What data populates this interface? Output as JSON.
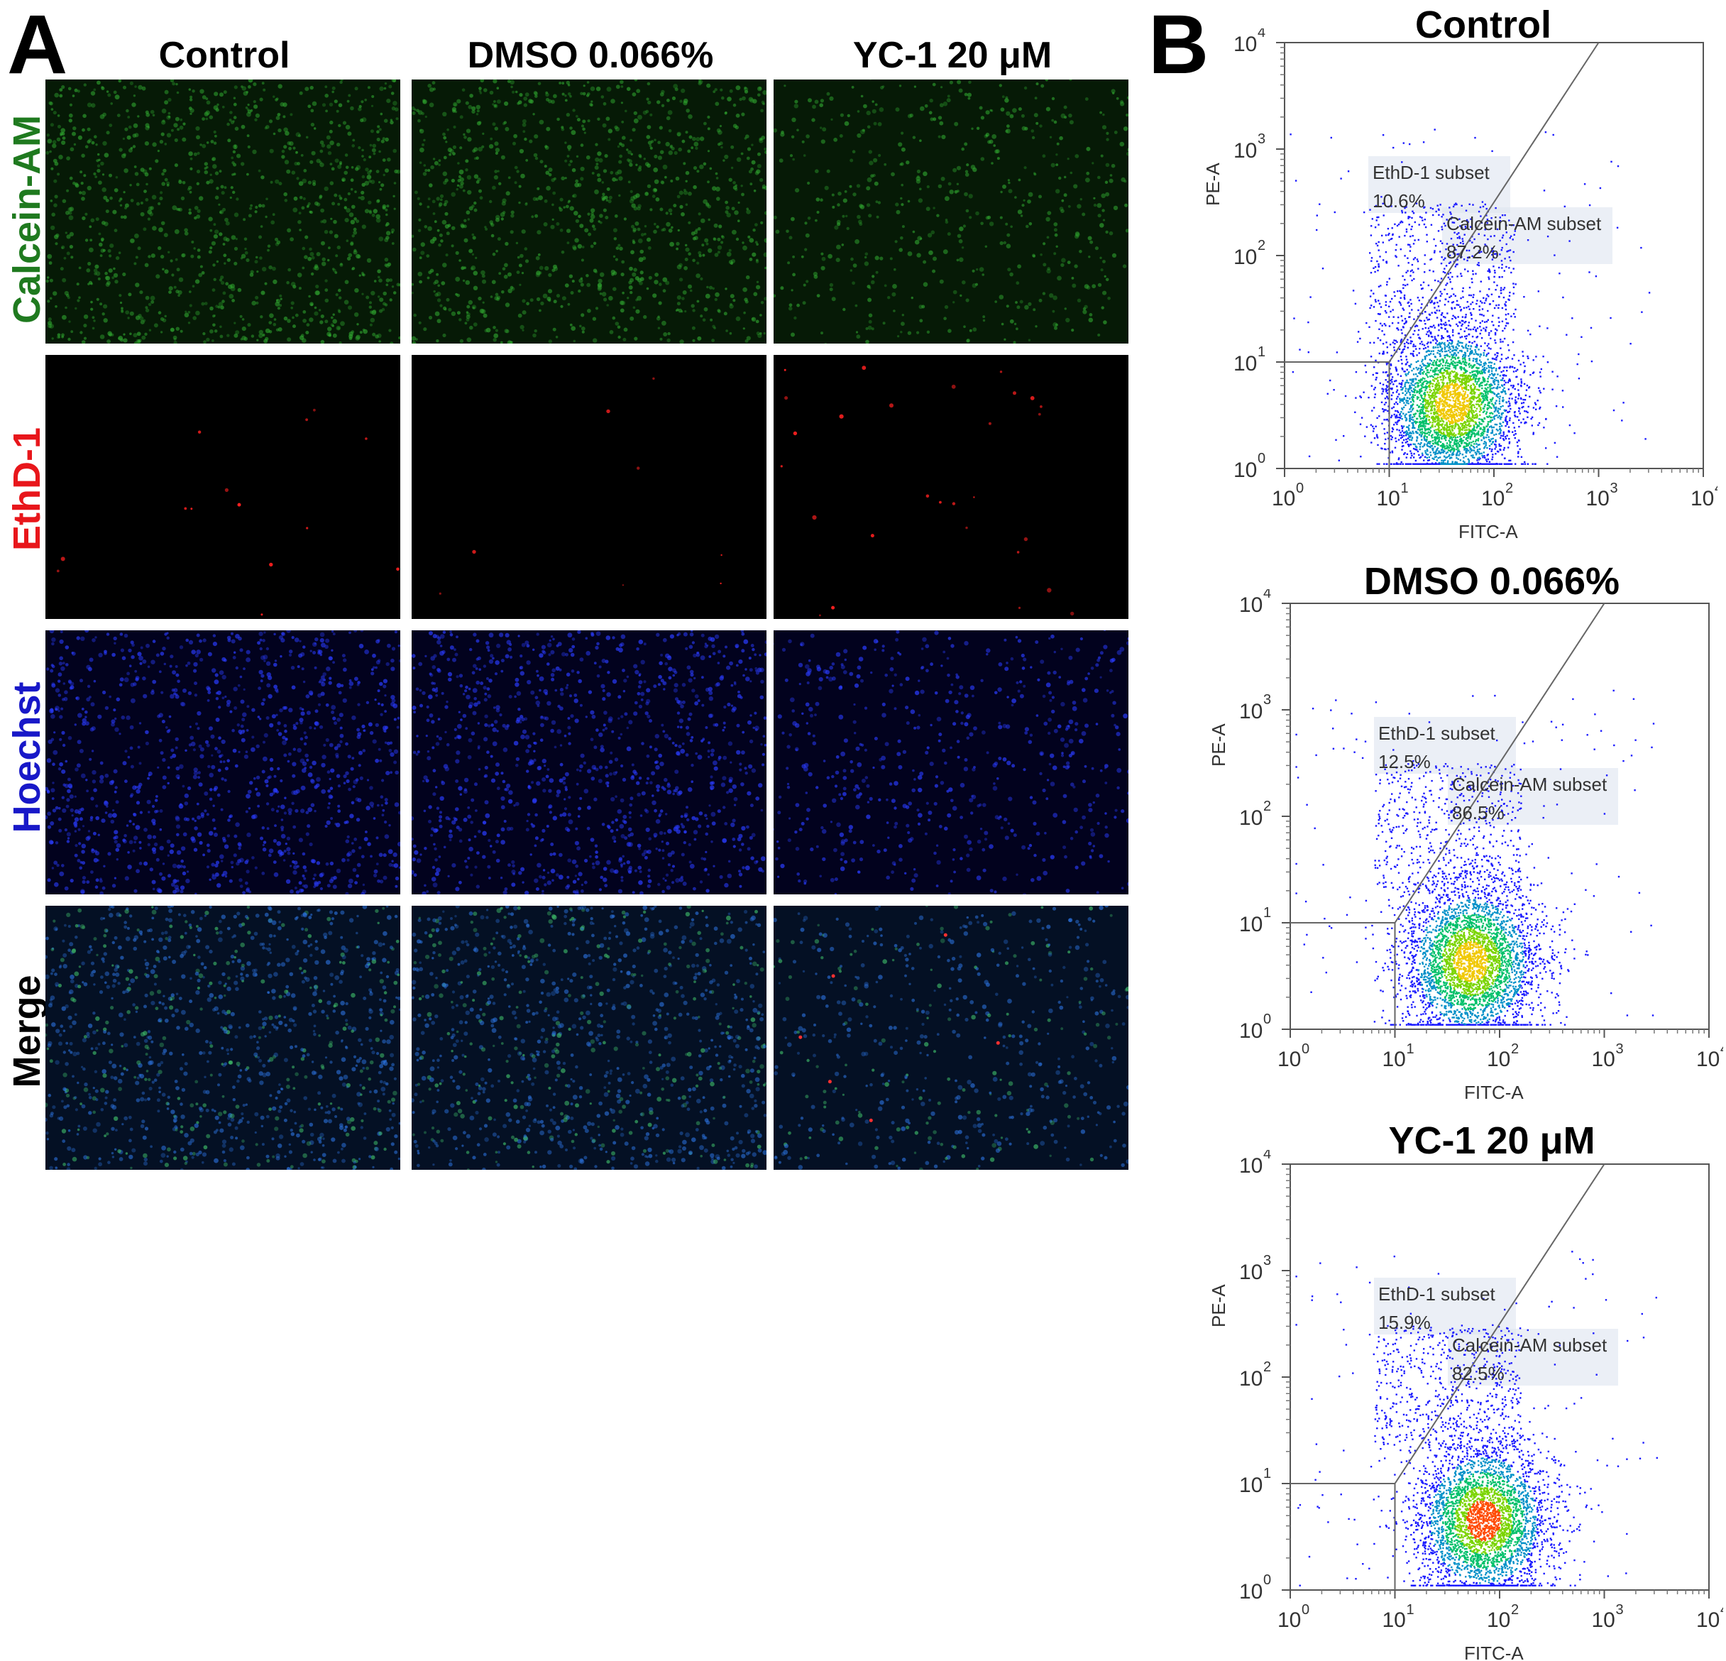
{
  "panel_a": {
    "letter": "A",
    "columns": [
      "Control",
      "DMSO 0.066%",
      "YC-1 20 μM"
    ],
    "rows": [
      {
        "label": "Calcein-AM",
        "color": "#1f7a1f",
        "channel": "calcein"
      },
      {
        "label": "EthD-1",
        "color": "#e8161b",
        "channel": "ethd"
      },
      {
        "label": "Hoechst",
        "color": "#1818c8",
        "channel": "hoechst"
      },
      {
        "label": "Merge",
        "color": "#000000",
        "channel": "merge"
      }
    ]
  },
  "panel_b": {
    "letter": "B",
    "x_label": "FITC-A",
    "y_label": "PE-A",
    "tick_labels": [
      "10",
      "10",
      "10",
      "10",
      "10"
    ],
    "tick_exponents": [
      "0",
      "1",
      "2",
      "3",
      "4"
    ],
    "gate_labels": {
      "ethd": "EthD-1 subset",
      "calcein": "Calcein-AM subset"
    }
  },
  "chart_data": [
    {
      "type": "scatter",
      "title": "Control",
      "xlabel": "FITC-A",
      "ylabel": "PE-A",
      "xscale": "log",
      "yscale": "log",
      "xlim": [
        1,
        10000
      ],
      "ylim": [
        1,
        10000
      ],
      "gates": [
        {
          "name": "EthD-1 subset",
          "percent": "10.6%"
        },
        {
          "name": "Calcein-AM subset",
          "percent": "87.2%"
        }
      ]
    },
    {
      "type": "scatter",
      "title": "DMSO 0.066%",
      "xlabel": "FITC-A",
      "ylabel": "PE-A",
      "xscale": "log",
      "yscale": "log",
      "xlim": [
        1,
        10000
      ],
      "ylim": [
        1,
        10000
      ],
      "gates": [
        {
          "name": "EthD-1 subset",
          "percent": "12.5%"
        },
        {
          "name": "Calcein-AM subset",
          "percent": "86.5%"
        }
      ]
    },
    {
      "type": "scatter",
      "title": "YC-1 20 μM",
      "xlabel": "FITC-A",
      "ylabel": "PE-A",
      "xscale": "log",
      "yscale": "log",
      "xlim": [
        1,
        10000
      ],
      "ylim": [
        1,
        10000
      ],
      "gates": [
        {
          "name": "EthD-1 subset",
          "percent": "15.9%"
        },
        {
          "name": "Calcein-AM subset",
          "percent": "82.5%"
        }
      ]
    }
  ]
}
